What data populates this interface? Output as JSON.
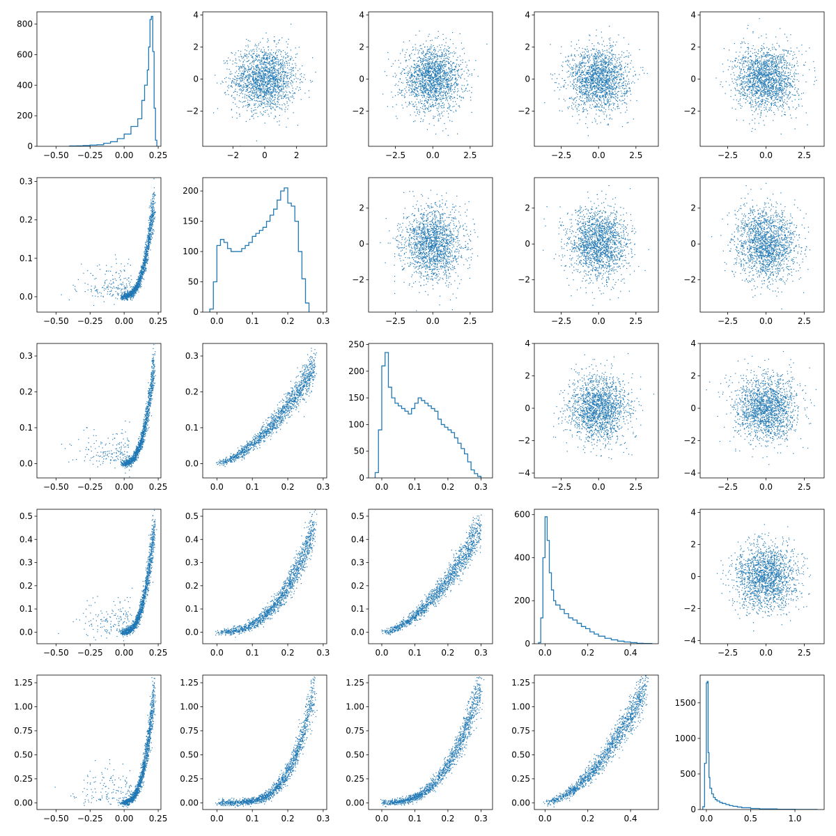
{
  "chart_data": {
    "type": "pairplot",
    "layout": "5x5 grid; diagonal = step histograms, lower triangle = curved-relationship scatter plots, upper triangle = Gaussian-noise scatter plots",
    "colors": {
      "marks": "#1f77b4",
      "axes": "#000000",
      "background": "#ffffff"
    },
    "rows": 5,
    "cols": 5,
    "panels": [
      {
        "row": 0,
        "col": 0,
        "kind": "histogram",
        "xlim": [
          -0.64,
          0.27
        ],
        "ylim": [
          0,
          880
        ],
        "xticks": [
          "-0.50",
          "-0.25",
          "0.00",
          "0.25"
        ],
        "xtick_values": [
          -0.5,
          -0.25,
          0,
          0.25
        ],
        "yticks": [
          "0",
          "200",
          "400",
          "600",
          "800"
        ],
        "ytick_values": [
          0,
          200,
          400,
          600,
          800
        ],
        "bins": [
          -0.4,
          -0.35,
          -0.3,
          -0.25,
          -0.2,
          -0.15,
          -0.1,
          -0.05,
          0.0,
          0.05,
          0.1,
          0.13,
          0.15,
          0.17,
          0.18,
          0.19,
          0.2,
          0.21,
          0.22,
          0.23,
          0.24
        ],
        "counts": [
          2,
          3,
          5,
          8,
          10,
          20,
          30,
          50,
          80,
          130,
          180,
          300,
          400,
          500,
          650,
          830,
          850,
          620,
          250,
          40
        ]
      },
      {
        "row": 0,
        "col": 1,
        "kind": "scatter",
        "relation": "noise",
        "xlim": [
          -3.9,
          3.9
        ],
        "ylim": [
          -4.2,
          4.2
        ],
        "xticks": [
          "-2",
          "0",
          "2"
        ],
        "xtick_values": [
          -2,
          0,
          2
        ],
        "yticks": [
          "-2",
          "0",
          "2",
          "4"
        ],
        "ytick_values": [
          -2,
          0,
          2,
          4
        ]
      },
      {
        "row": 0,
        "col": 2,
        "kind": "scatter",
        "relation": "noise",
        "xlim": [
          -4.3,
          4.0
        ],
        "ylim": [
          -4.2,
          4.2
        ],
        "xticks": [
          "-2.5",
          "0.0",
          "2.5"
        ],
        "xtick_values": [
          -2.5,
          0,
          2.5
        ],
        "yticks": [
          "-2",
          "0",
          "2",
          "4"
        ],
        "ytick_values": [
          -2,
          0,
          2,
          4
        ]
      },
      {
        "row": 0,
        "col": 3,
        "kind": "scatter",
        "relation": "noise",
        "xlim": [
          -4.3,
          4.0
        ],
        "ylim": [
          -4.2,
          4.2
        ],
        "xticks": [
          "-2.5",
          "0.0",
          "2.5"
        ],
        "xtick_values": [
          -2.5,
          0,
          2.5
        ],
        "yticks": [
          "-2",
          "0",
          "2",
          "4"
        ],
        "ytick_values": [
          -2,
          0,
          2,
          4
        ]
      },
      {
        "row": 0,
        "col": 4,
        "kind": "scatter",
        "relation": "noise",
        "xlim": [
          -4.3,
          3.8
        ],
        "ylim": [
          -4.2,
          4.2
        ],
        "xticks": [
          "-2.5",
          "0.0",
          "2.5"
        ],
        "xtick_values": [
          -2.5,
          0,
          2.5
        ],
        "yticks": [
          "-2",
          "0",
          "2",
          "4"
        ],
        "ytick_values": [
          -2,
          0,
          2,
          4
        ]
      },
      {
        "row": 1,
        "col": 0,
        "kind": "scatter",
        "relation": "curve",
        "xlim": [
          -0.64,
          0.27
        ],
        "ylim": [
          -0.04,
          0.31
        ],
        "xticks": [
          "-0.50",
          "-0.25",
          "0.00",
          "0.25"
        ],
        "xtick_values": [
          -0.5,
          -0.25,
          0,
          0.25
        ],
        "yticks": [
          "0.0",
          "0.1",
          "0.2",
          "0.3"
        ],
        "ytick_values": [
          0,
          0.1,
          0.2,
          0.3
        ]
      },
      {
        "row": 1,
        "col": 1,
        "kind": "histogram",
        "xlim": [
          -0.04,
          0.31
        ],
        "ylim": [
          0,
          222
        ],
        "xticks": [
          "0.0",
          "0.1",
          "0.2",
          "0.3"
        ],
        "xtick_values": [
          0,
          0.1,
          0.2,
          0.3
        ],
        "yticks": [
          "0",
          "50",
          "100",
          "150",
          "200"
        ],
        "ytick_values": [
          0,
          50,
          100,
          150,
          200
        ],
        "bins": [
          -0.02,
          -0.01,
          0.0,
          0.01,
          0.02,
          0.03,
          0.04,
          0.05,
          0.06,
          0.07,
          0.08,
          0.09,
          0.1,
          0.11,
          0.12,
          0.13,
          0.14,
          0.15,
          0.16,
          0.17,
          0.18,
          0.19,
          0.2,
          0.21,
          0.22,
          0.23,
          0.24,
          0.25,
          0.26
        ],
        "counts": [
          5,
          50,
          110,
          120,
          115,
          105,
          100,
          100,
          100,
          105,
          110,
          115,
          125,
          130,
          135,
          140,
          150,
          160,
          170,
          185,
          200,
          205,
          180,
          175,
          150,
          100,
          55,
          15
        ]
      },
      {
        "row": 1,
        "col": 2,
        "kind": "scatter",
        "relation": "noise",
        "xlim": [
          -4.3,
          4.0
        ],
        "ylim": [
          -3.8,
          3.7
        ],
        "xticks": [
          "-2.5",
          "0.0",
          "2.5"
        ],
        "xtick_values": [
          -2.5,
          0,
          2.5
        ],
        "yticks": [
          "-2",
          "0",
          "2"
        ],
        "ytick_values": [
          -2,
          0,
          2
        ]
      },
      {
        "row": 1,
        "col": 3,
        "kind": "scatter",
        "relation": "noise",
        "xlim": [
          -4.3,
          4.0
        ],
        "ylim": [
          -3.8,
          3.7
        ],
        "xticks": [
          "-2.5",
          "0.0",
          "2.5"
        ],
        "xtick_values": [
          -2.5,
          0,
          2.5
        ],
        "yticks": [
          "-2",
          "0",
          "2"
        ],
        "ytick_values": [
          -2,
          0,
          2
        ]
      },
      {
        "row": 1,
        "col": 4,
        "kind": "scatter",
        "relation": "noise",
        "xlim": [
          -4.3,
          3.8
        ],
        "ylim": [
          -3.8,
          3.7
        ],
        "xticks": [
          "-2.5",
          "0.0",
          "2.5"
        ],
        "xtick_values": [
          -2.5,
          0,
          2.5
        ],
        "yticks": [
          "-2",
          "0",
          "2"
        ],
        "ytick_values": [
          -2,
          0,
          2
        ]
      },
      {
        "row": 2,
        "col": 0,
        "kind": "scatter",
        "relation": "curve",
        "xlim": [
          -0.64,
          0.27
        ],
        "ylim": [
          -0.04,
          0.335
        ],
        "xticks": [
          "-0.50",
          "-0.25",
          "0.00",
          "0.25"
        ],
        "xtick_values": [
          -0.5,
          -0.25,
          0,
          0.25
        ],
        "yticks": [
          "0.0",
          "0.1",
          "0.2",
          "0.3"
        ],
        "ytick_values": [
          0,
          0.1,
          0.2,
          0.3
        ]
      },
      {
        "row": 2,
        "col": 1,
        "kind": "scatter",
        "relation": "curve",
        "xlim": [
          -0.04,
          0.31
        ],
        "ylim": [
          -0.04,
          0.335
        ],
        "xticks": [
          "0.0",
          "0.1",
          "0.2",
          "0.3"
        ],
        "xtick_values": [
          0,
          0.1,
          0.2,
          0.3
        ],
        "yticks": [
          "0.0",
          "0.1",
          "0.2",
          "0.3"
        ],
        "ytick_values": [
          0,
          0.1,
          0.2,
          0.3
        ]
      },
      {
        "row": 2,
        "col": 2,
        "kind": "histogram",
        "xlim": [
          -0.04,
          0.335
        ],
        "ylim": [
          0,
          252
        ],
        "xticks": [
          "0.0",
          "0.1",
          "0.2",
          "0.3"
        ],
        "xtick_values": [
          0,
          0.1,
          0.2,
          0.3
        ],
        "yticks": [
          "0",
          "50",
          "100",
          "150",
          "200",
          "250"
        ],
        "ytick_values": [
          0,
          50,
          100,
          150,
          200,
          250
        ],
        "bins": [
          -0.02,
          -0.01,
          0.0,
          0.01,
          0.02,
          0.03,
          0.04,
          0.05,
          0.06,
          0.07,
          0.08,
          0.09,
          0.1,
          0.11,
          0.12,
          0.13,
          0.14,
          0.15,
          0.16,
          0.17,
          0.18,
          0.19,
          0.2,
          0.21,
          0.22,
          0.23,
          0.24,
          0.25,
          0.26,
          0.27,
          0.28,
          0.29,
          0.3
        ],
        "counts": [
          10,
          90,
          210,
          235,
          170,
          150,
          140,
          135,
          130,
          125,
          120,
          130,
          140,
          150,
          145,
          140,
          135,
          130,
          125,
          110,
          100,
          95,
          90,
          85,
          75,
          65,
          55,
          45,
          30,
          15,
          8,
          3
        ]
      },
      {
        "row": 2,
        "col": 3,
        "kind": "scatter",
        "relation": "noise",
        "xlim": [
          -4.3,
          4.0
        ],
        "ylim": [
          -4.3,
          4.0
        ],
        "xticks": [
          "-2.5",
          "0.0",
          "2.5"
        ],
        "xtick_values": [
          -2.5,
          0,
          2.5
        ],
        "yticks": [
          "-4",
          "-2",
          "0",
          "2",
          "4"
        ],
        "ytick_values": [
          -4,
          -2,
          0,
          2,
          4
        ]
      },
      {
        "row": 2,
        "col": 4,
        "kind": "scatter",
        "relation": "noise",
        "xlim": [
          -4.3,
          3.8
        ],
        "ylim": [
          -4.3,
          4.0
        ],
        "xticks": [
          "-2.5",
          "0.0",
          "2.5"
        ],
        "xtick_values": [
          -2.5,
          0,
          2.5
        ],
        "yticks": [
          "-4",
          "-2",
          "0",
          "2",
          "4"
        ],
        "ytick_values": [
          -4,
          -2,
          0,
          2,
          4
        ]
      },
      {
        "row": 3,
        "col": 0,
        "kind": "scatter",
        "relation": "curve",
        "xlim": [
          -0.64,
          0.27
        ],
        "ylim": [
          -0.05,
          0.53
        ],
        "xticks": [
          "-0.50",
          "-0.25",
          "0.00",
          "0.25"
        ],
        "xtick_values": [
          -0.5,
          -0.25,
          0,
          0.25
        ],
        "yticks": [
          "0.0",
          "0.1",
          "0.2",
          "0.3",
          "0.4",
          "0.5"
        ],
        "ytick_values": [
          0,
          0.1,
          0.2,
          0.3,
          0.4,
          0.5
        ]
      },
      {
        "row": 3,
        "col": 1,
        "kind": "scatter",
        "relation": "curve",
        "xlim": [
          -0.04,
          0.31
        ],
        "ylim": [
          -0.05,
          0.53
        ],
        "xticks": [
          "0.0",
          "0.1",
          "0.2",
          "0.3"
        ],
        "xtick_values": [
          0,
          0.1,
          0.2,
          0.3
        ],
        "yticks": [
          "0.0",
          "0.1",
          "0.2",
          "0.3",
          "0.4",
          "0.5"
        ],
        "ytick_values": [
          0,
          0.1,
          0.2,
          0.3,
          0.4,
          0.5
        ]
      },
      {
        "row": 3,
        "col": 2,
        "kind": "scatter",
        "relation": "curve",
        "xlim": [
          -0.04,
          0.335
        ],
        "ylim": [
          -0.05,
          0.53
        ],
        "xticks": [
          "0.0",
          "0.1",
          "0.2",
          "0.3"
        ],
        "xtick_values": [
          0,
          0.1,
          0.2,
          0.3
        ],
        "yticks": [
          "0.0",
          "0.1",
          "0.2",
          "0.3",
          "0.4",
          "0.5"
        ],
        "ytick_values": [
          0,
          0.1,
          0.2,
          0.3,
          0.4,
          0.5
        ]
      },
      {
        "row": 3,
        "col": 3,
        "kind": "histogram",
        "xlim": [
          -0.05,
          0.53
        ],
        "ylim": [
          0,
          625
        ],
        "xticks": [
          "0.0",
          "0.2",
          "0.4"
        ],
        "xtick_values": [
          0,
          0.2,
          0.4
        ],
        "yticks": [
          "0",
          "200",
          "400",
          "600"
        ],
        "ytick_values": [
          0,
          200,
          400,
          600
        ],
        "bins": [
          -0.03,
          -0.02,
          -0.01,
          0.0,
          0.01,
          0.02,
          0.03,
          0.04,
          0.05,
          0.07,
          0.09,
          0.11,
          0.13,
          0.15,
          0.17,
          0.19,
          0.21,
          0.23,
          0.25,
          0.28,
          0.31,
          0.34,
          0.37,
          0.4,
          0.43,
          0.46,
          0.5
        ],
        "counts": [
          5,
          120,
          400,
          590,
          480,
          330,
          250,
          200,
          180,
          160,
          140,
          120,
          110,
          95,
          80,
          70,
          55,
          45,
          35,
          25,
          18,
          12,
          8,
          5,
          2,
          1
        ]
      },
      {
        "row": 3,
        "col": 4,
        "kind": "scatter",
        "relation": "noise",
        "xlim": [
          -4.3,
          3.8
        ],
        "ylim": [
          -4.2,
          4.2
        ],
        "xticks": [
          "-2.5",
          "0.0",
          "2.5"
        ],
        "xtick_values": [
          -2.5,
          0,
          2.5
        ],
        "yticks": [
          "-4",
          "-2",
          "0",
          "2",
          "4"
        ],
        "ytick_values": [
          -4,
          -2,
          0,
          2,
          4
        ]
      },
      {
        "row": 4,
        "col": 0,
        "kind": "scatter",
        "relation": "curve",
        "xlim": [
          -0.64,
          0.27
        ],
        "ylim": [
          -0.07,
          1.33
        ],
        "xticks": [
          "-0.50",
          "-0.25",
          "0.00",
          "0.25"
        ],
        "xtick_values": [
          -0.5,
          -0.25,
          0,
          0.25
        ],
        "yticks": [
          "0.00",
          "0.25",
          "0.50",
          "0.75",
          "1.00",
          "1.25"
        ],
        "ytick_values": [
          0,
          0.25,
          0.5,
          0.75,
          1,
          1.25
        ]
      },
      {
        "row": 4,
        "col": 1,
        "kind": "scatter",
        "relation": "curve",
        "xlim": [
          -0.04,
          0.31
        ],
        "ylim": [
          -0.07,
          1.33
        ],
        "xticks": [
          "0.0",
          "0.1",
          "0.2",
          "0.3"
        ],
        "xtick_values": [
          0,
          0.1,
          0.2,
          0.3
        ],
        "yticks": [
          "0.00",
          "0.25",
          "0.50",
          "0.75",
          "1.00",
          "1.25"
        ],
        "ytick_values": [
          0,
          0.25,
          0.5,
          0.75,
          1,
          1.25
        ]
      },
      {
        "row": 4,
        "col": 2,
        "kind": "scatter",
        "relation": "curve",
        "xlim": [
          -0.04,
          0.335
        ],
        "ylim": [
          -0.07,
          1.33
        ],
        "xticks": [
          "0.0",
          "0.1",
          "0.2",
          "0.3"
        ],
        "xtick_values": [
          0,
          0.1,
          0.2,
          0.3
        ],
        "yticks": [
          "0.00",
          "0.25",
          "0.50",
          "0.75",
          "1.00",
          "1.25"
        ],
        "ytick_values": [
          0,
          0.25,
          0.5,
          0.75,
          1,
          1.25
        ]
      },
      {
        "row": 4,
        "col": 3,
        "kind": "scatter",
        "relation": "curve",
        "xlim": [
          -0.05,
          0.53
        ],
        "ylim": [
          -0.07,
          1.33
        ],
        "xticks": [
          "0.0",
          "0.2",
          "0.4"
        ],
        "xtick_values": [
          0,
          0.2,
          0.4
        ],
        "yticks": [
          "0.00",
          "0.25",
          "0.50",
          "0.75",
          "1.00",
          "1.25"
        ],
        "ytick_values": [
          0,
          0.25,
          0.5,
          0.75,
          1,
          1.25
        ]
      },
      {
        "row": 4,
        "col": 4,
        "kind": "histogram",
        "xlim": [
          -0.07,
          1.33
        ],
        "ylim": [
          0,
          1890
        ],
        "xticks": [
          "0.0",
          "0.5",
          "1.0"
        ],
        "xtick_values": [
          0,
          0.5,
          1.0
        ],
        "yticks": [
          "0",
          "500",
          "1000",
          "1500"
        ],
        "ytick_values": [
          0,
          500,
          1000,
          1500
        ],
        "bins": [
          -0.04,
          -0.02,
          0.0,
          0.01,
          0.02,
          0.03,
          0.04,
          0.06,
          0.08,
          0.1,
          0.12,
          0.15,
          0.18,
          0.22,
          0.26,
          0.3,
          0.35,
          0.4,
          0.5,
          0.6,
          0.8,
          1.0,
          1.25
        ],
        "counts": [
          40,
          650,
          1780,
          1800,
          800,
          450,
          300,
          220,
          170,
          140,
          120,
          100,
          85,
          70,
          55,
          45,
          35,
          25,
          15,
          8,
          3,
          1
        ]
      }
    ]
  }
}
